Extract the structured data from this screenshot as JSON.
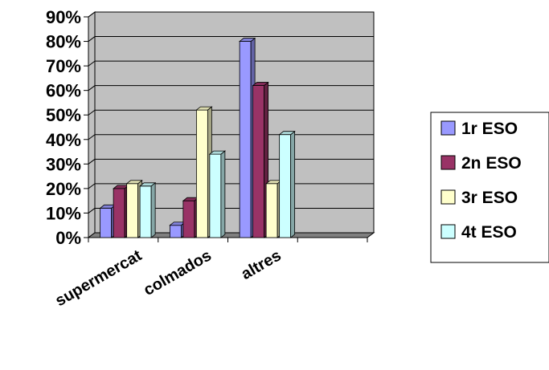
{
  "chart_data": {
    "type": "bar",
    "style": "3d-clustered-column",
    "categories": [
      "supermercat",
      "colmados",
      "altres",
      ""
    ],
    "series": [
      {
        "name": "1r ESO",
        "values": [
          12,
          5,
          80,
          null
        ],
        "color": "#9999FF"
      },
      {
        "name": "2n ESO",
        "values": [
          20,
          15,
          62,
          null
        ],
        "color": "#993366"
      },
      {
        "name": "3r ESO",
        "values": [
          22,
          52,
          22,
          null
        ],
        "color": "#FFFFCC"
      },
      {
        "name": "4t ESO",
        "values": [
          21,
          34,
          42,
          null
        ],
        "color": "#CCFFFF"
      }
    ],
    "y_ticks": [
      "0%",
      "10%",
      "20%",
      "30%",
      "40%",
      "50%",
      "60%",
      "70%",
      "80%",
      "90%"
    ],
    "ylim": [
      0,
      90
    ],
    "y_unit": "%",
    "grid": true,
    "wall_color": "#C0C0C0",
    "legend_position": "right"
  }
}
